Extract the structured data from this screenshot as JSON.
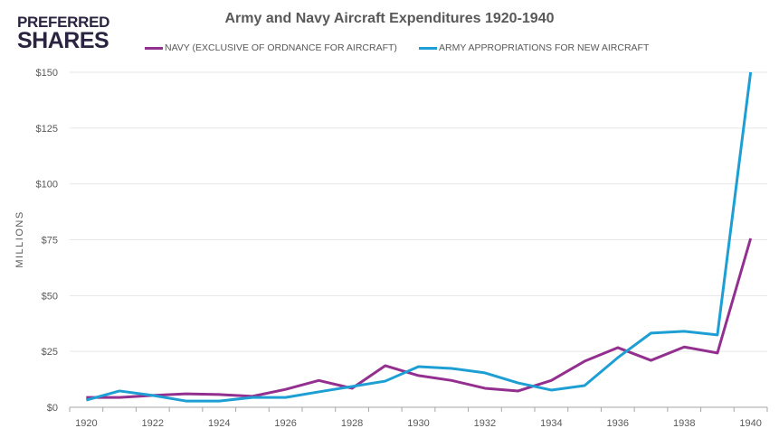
{
  "logo": {
    "line1": "PREFERRED",
    "line2": "SHARES"
  },
  "chart_data": {
    "type": "line",
    "title": "Army and Navy Aircraft Expenditures 1920-1940",
    "xlabel": "",
    "ylabel": "MILLIONS",
    "ylim": [
      0,
      150
    ],
    "yticks": [
      0,
      25,
      50,
      75,
      100,
      125,
      150
    ],
    "ytick_labels": [
      "$0",
      "$25",
      "$50",
      "$75",
      "$100",
      "$125",
      "$150"
    ],
    "x": [
      1920,
      1921,
      1922,
      1923,
      1924,
      1925,
      1926,
      1927,
      1928,
      1929,
      1930,
      1931,
      1932,
      1933,
      1934,
      1935,
      1936,
      1937,
      1938,
      1939,
      1940
    ],
    "xtick_labels": [
      "1920",
      "1922",
      "1924",
      "1926",
      "1928",
      "1930",
      "1932",
      "1934",
      "1936",
      "1938",
      "1940"
    ],
    "grid": true,
    "legend_position": "top",
    "series": [
      {
        "name": "NAVY (EXCLUSIVE OF ORDNANCE FOR AIRCRAFT)",
        "color": "#93308f",
        "values": [
          4.4,
          4.4,
          5.3,
          6,
          5.7,
          4.9,
          8,
          12,
          8.5,
          18.6,
          14.2,
          12,
          8.5,
          7.3,
          12,
          20.6,
          26.7,
          21,
          27,
          24.3,
          75.6
        ]
      },
      {
        "name": "ARMY APPROPRIATIONS FOR NEW AIRCRAFT",
        "color": "#1d9fd3",
        "values": [
          3.2,
          7.3,
          5.3,
          2.8,
          2.8,
          4.4,
          4.4,
          6.9,
          9.3,
          11.7,
          18.2,
          17.4,
          15.4,
          10.9,
          7.7,
          9.7,
          22.2,
          33.2,
          34,
          32.4,
          150
        ]
      }
    ]
  }
}
